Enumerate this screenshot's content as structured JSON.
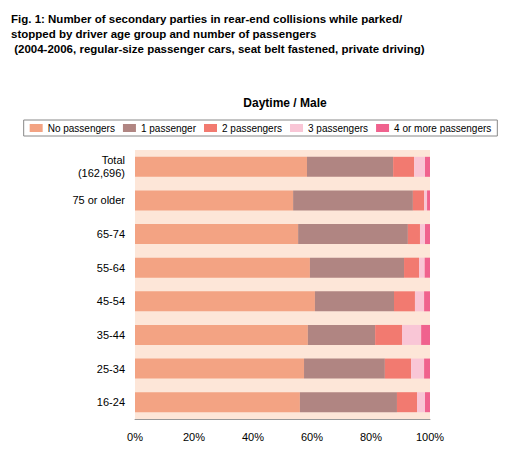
{
  "chart_data": {
    "type": "bar",
    "title": "Fig. 1: Number of secondary parties in rear-end collisions while parked/\nstopped by driver age group and number of passengers\n (2004-2006, regular-size passenger cars, seat belt fastened, private driving)",
    "subtitle": "Daytime / Male",
    "orientation": "horizontal",
    "stacked": true,
    "grid": false,
    "legend": "top",
    "categories": [
      "Total\n(162,696)",
      "75 or older",
      "65-74",
      "55-64",
      "45-54",
      "35-44",
      "25-34",
      "16-24"
    ],
    "series": [
      {
        "name": "No passengers",
        "color": "#f3a383",
        "values": [
          58.3,
          53.6,
          55.3,
          59.3,
          61.0,
          58.6,
          57.3,
          55.9
        ]
      },
      {
        "name": "1 passenger",
        "color": "#b08582",
        "values": [
          29.2,
          40.6,
          37.2,
          31.9,
          26.8,
          22.8,
          27.4,
          32.9
        ]
      },
      {
        "name": "2 passengers",
        "color": "#f27a70",
        "values": [
          7.1,
          3.8,
          4.1,
          5.1,
          7.1,
          9.1,
          8.9,
          6.8
        ]
      },
      {
        "name": "3 passengers",
        "color": "#f9c6d6",
        "values": [
          3.7,
          1.0,
          1.7,
          1.9,
          3.1,
          6.5,
          4.4,
          2.7
        ]
      },
      {
        "name": "4 or more passengers",
        "color": "#f0628e",
        "values": [
          1.7,
          1.0,
          1.7,
          1.8,
          2.0,
          3.0,
          2.0,
          1.7
        ]
      }
    ],
    "xlim": [
      0,
      100
    ],
    "xticks": [
      {
        "value": 0,
        "label": "0%"
      },
      {
        "value": 20,
        "label": "20%"
      },
      {
        "value": 40,
        "label": "40%"
      },
      {
        "value": 60,
        "label": "60%"
      },
      {
        "value": 80,
        "label": "80%"
      },
      {
        "value": 100,
        "label": "100%"
      }
    ]
  }
}
